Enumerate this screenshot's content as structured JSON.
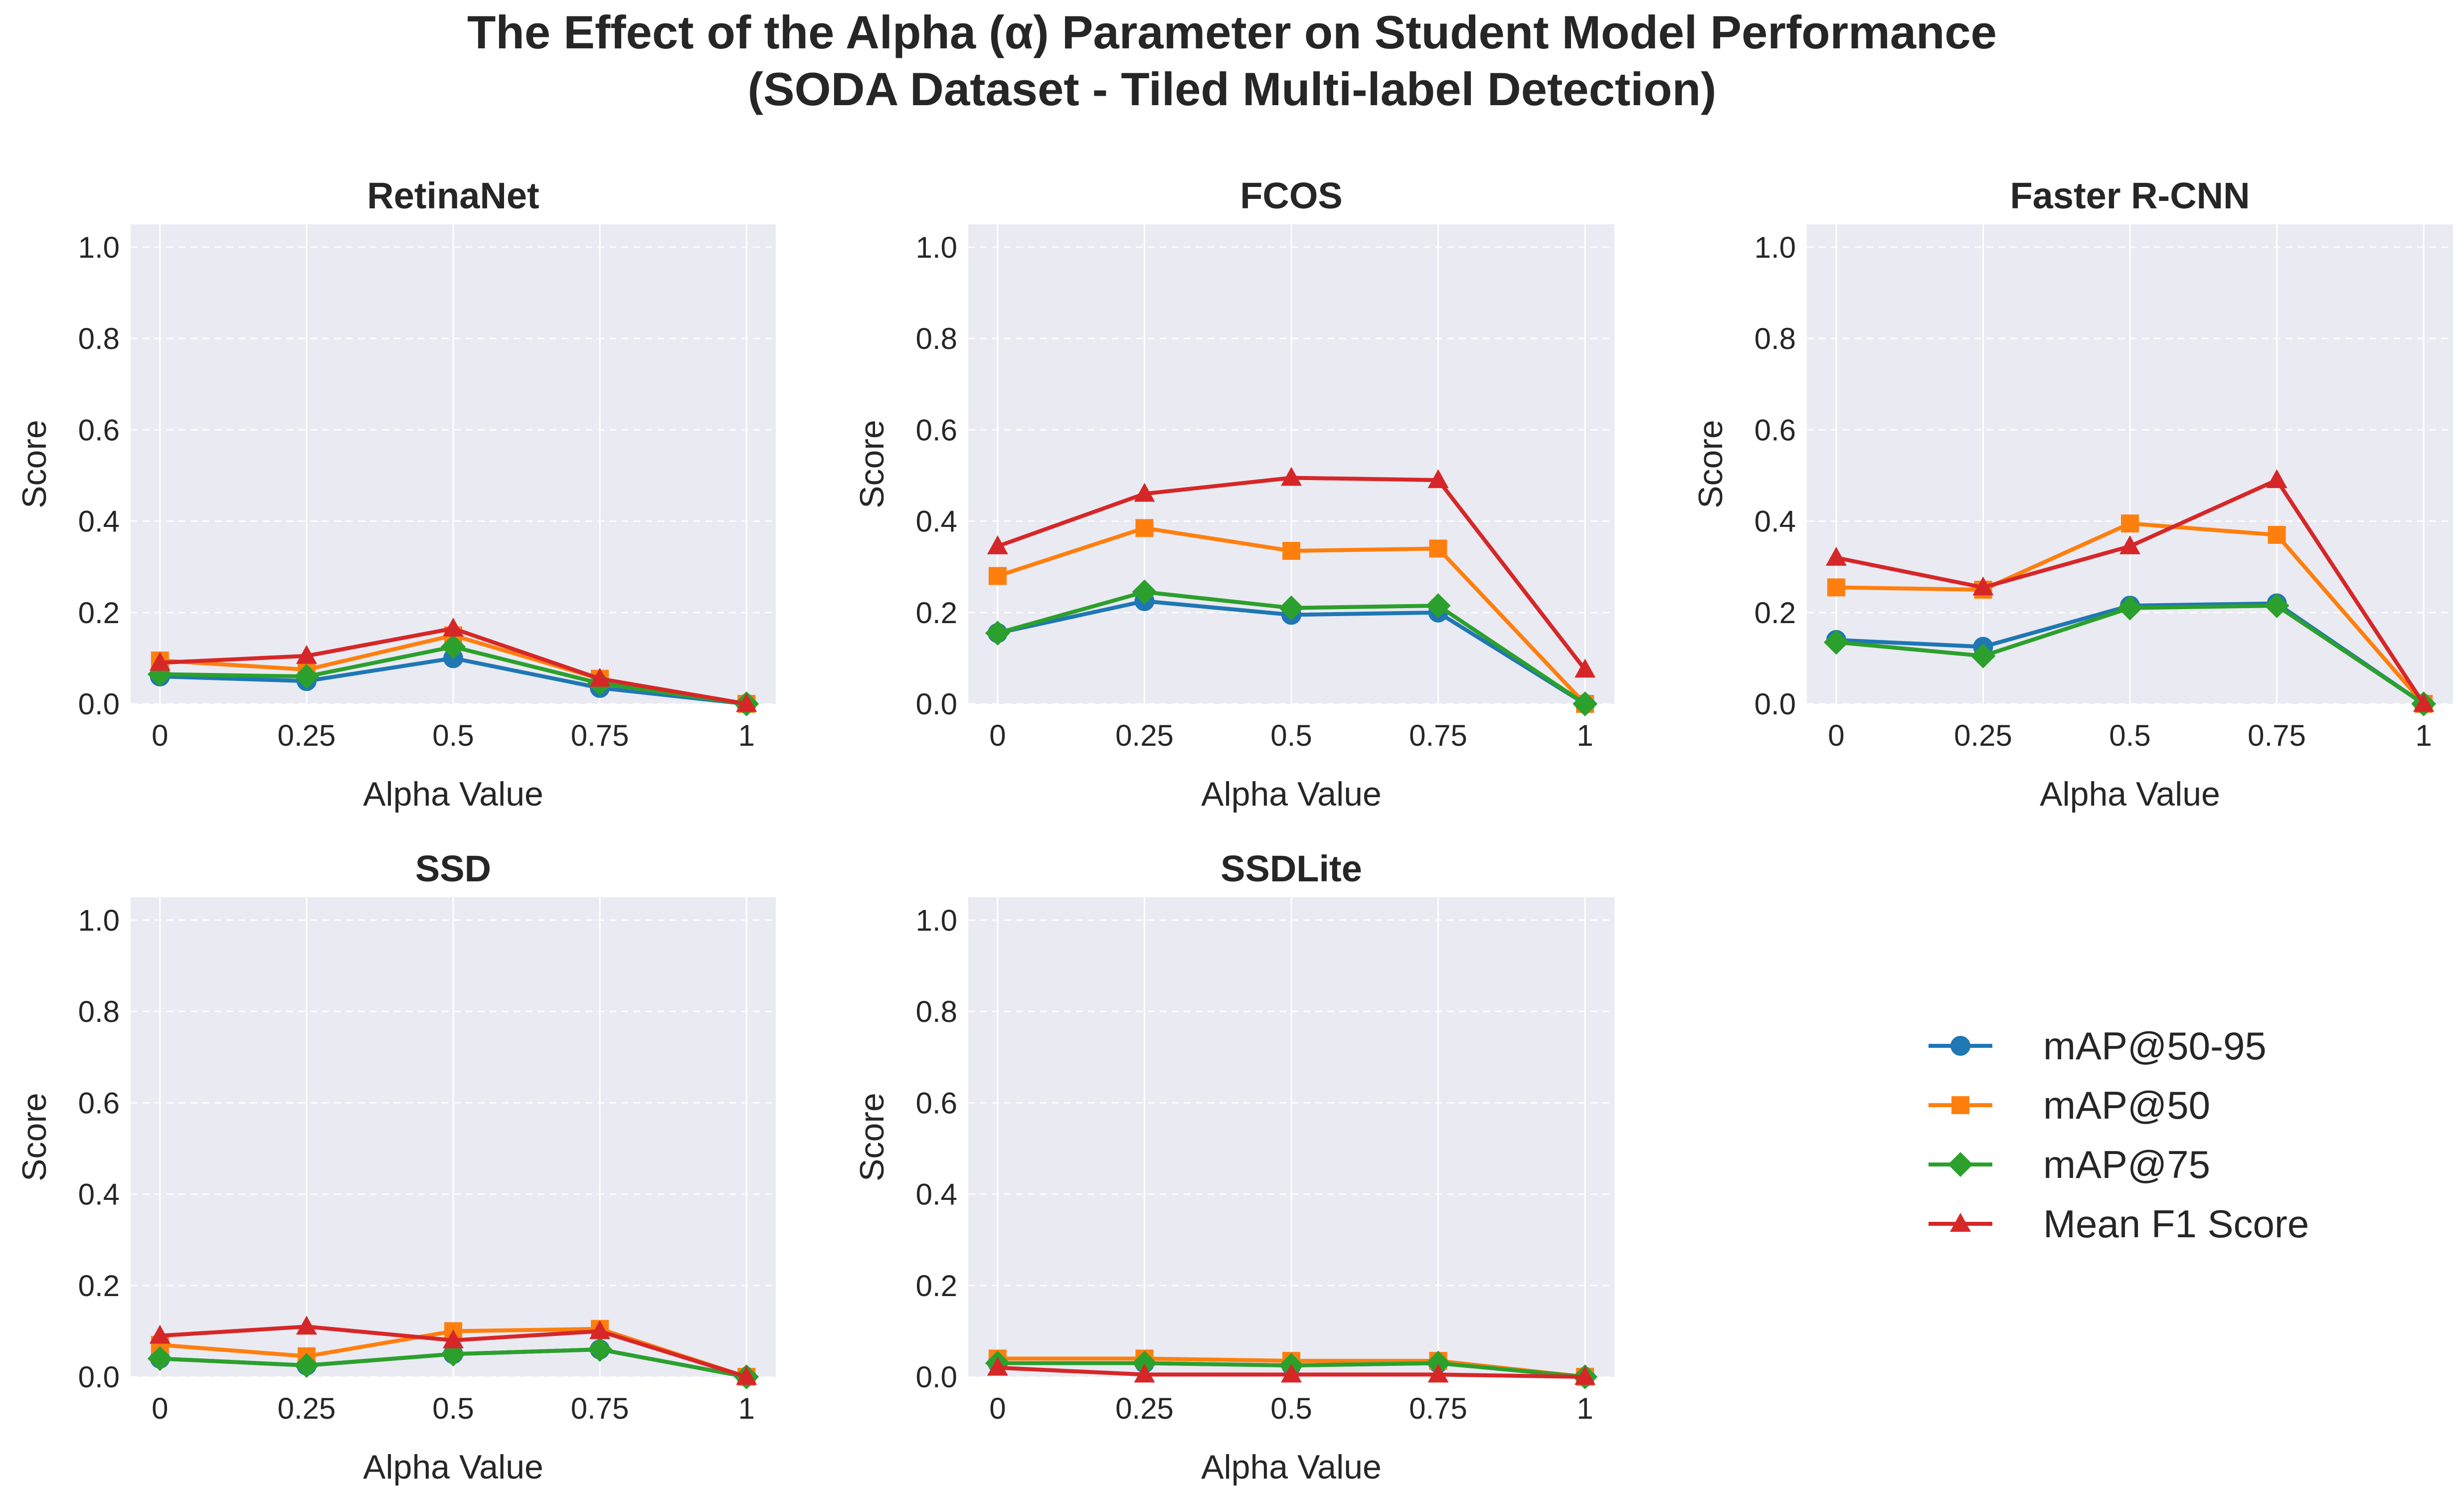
{
  "title_line1": "The Effect of the Alpha (α) Parameter on Student Model Performance",
  "title_line2": "(SODA Dataset - Tiled Multi-label Detection)",
  "chart_data": [
    {
      "type": "line",
      "title": "RetinaNet",
      "xlabel": "Alpha Value",
      "ylabel": "Score",
      "x": [
        "0",
        "0.25",
        "0.5",
        "0.75",
        "1"
      ],
      "ylim": [
        0,
        1.05
      ],
      "yticks": [
        "0.0",
        "0.2",
        "0.4",
        "0.6",
        "0.8",
        "1.0"
      ],
      "series": [
        {
          "name": "mAP@50-95",
          "values": [
            0.06,
            0.05,
            0.1,
            0.035,
            0.0
          ]
        },
        {
          "name": "mAP@50",
          "values": [
            0.095,
            0.075,
            0.15,
            0.055,
            0.0
          ]
        },
        {
          "name": "mAP@75",
          "values": [
            0.065,
            0.06,
            0.125,
            0.045,
            0.0
          ]
        },
        {
          "name": "Mean F1 Score",
          "values": [
            0.09,
            0.105,
            0.165,
            0.055,
            0.0
          ]
        }
      ]
    },
    {
      "type": "line",
      "title": "FCOS",
      "xlabel": "Alpha Value",
      "ylabel": "Score",
      "x": [
        "0",
        "0.25",
        "0.5",
        "0.75",
        "1"
      ],
      "ylim": [
        0,
        1.05
      ],
      "yticks": [
        "0.0",
        "0.2",
        "0.4",
        "0.6",
        "0.8",
        "1.0"
      ],
      "series": [
        {
          "name": "mAP@50-95",
          "values": [
            0.155,
            0.225,
            0.195,
            0.2,
            0.0
          ]
        },
        {
          "name": "mAP@50",
          "values": [
            0.28,
            0.385,
            0.335,
            0.34,
            0.0
          ]
        },
        {
          "name": "mAP@75",
          "values": [
            0.155,
            0.245,
            0.21,
            0.215,
            0.0
          ]
        },
        {
          "name": "Mean F1 Score",
          "values": [
            0.345,
            0.46,
            0.495,
            0.49,
            0.075
          ]
        }
      ]
    },
    {
      "type": "line",
      "title": "Faster R-CNN",
      "xlabel": "Alpha Value",
      "ylabel": "Score",
      "x": [
        "0",
        "0.25",
        "0.5",
        "0.75",
        "1"
      ],
      "ylim": [
        0,
        1.05
      ],
      "yticks": [
        "0.0",
        "0.2",
        "0.4",
        "0.6",
        "0.8",
        "1.0"
      ],
      "series": [
        {
          "name": "mAP@50-95",
          "values": [
            0.14,
            0.125,
            0.215,
            0.22,
            0.0
          ]
        },
        {
          "name": "mAP@50",
          "values": [
            0.255,
            0.25,
            0.395,
            0.37,
            0.0
          ]
        },
        {
          "name": "mAP@75",
          "values": [
            0.135,
            0.105,
            0.21,
            0.215,
            0.0
          ]
        },
        {
          "name": "Mean F1 Score",
          "values": [
            0.32,
            0.255,
            0.345,
            0.49,
            0.0
          ]
        }
      ]
    },
    {
      "type": "line",
      "title": "SSD",
      "xlabel": "Alpha Value",
      "ylabel": "Score",
      "x": [
        "0",
        "0.25",
        "0.5",
        "0.75",
        "1"
      ],
      "ylim": [
        0,
        1.05
      ],
      "yticks": [
        "0.0",
        "0.2",
        "0.4",
        "0.6",
        "0.8",
        "1.0"
      ],
      "series": [
        {
          "name": "mAP@50-95",
          "values": [
            0.04,
            0.025,
            0.05,
            0.06,
            0.0
          ]
        },
        {
          "name": "mAP@50",
          "values": [
            0.07,
            0.045,
            0.1,
            0.105,
            0.0
          ]
        },
        {
          "name": "mAP@75",
          "values": [
            0.04,
            0.025,
            0.05,
            0.06,
            0.0
          ]
        },
        {
          "name": "Mean F1 Score",
          "values": [
            0.09,
            0.11,
            0.08,
            0.1,
            0.0
          ]
        }
      ]
    },
    {
      "type": "line",
      "title": "SSDLite",
      "xlabel": "Alpha Value",
      "ylabel": "Score",
      "x": [
        "0",
        "0.25",
        "0.5",
        "0.75",
        "1"
      ],
      "ylim": [
        0,
        1.05
      ],
      "yticks": [
        "0.0",
        "0.2",
        "0.4",
        "0.6",
        "0.8",
        "1.0"
      ],
      "series": [
        {
          "name": "mAP@50-95",
          "values": [
            0.03,
            0.03,
            0.025,
            0.03,
            0.0
          ]
        },
        {
          "name": "mAP@50",
          "values": [
            0.04,
            0.04,
            0.035,
            0.035,
            0.0
          ]
        },
        {
          "name": "mAP@75",
          "values": [
            0.03,
            0.03,
            0.025,
            0.03,
            0.0
          ]
        },
        {
          "name": "Mean F1 Score",
          "values": [
            0.02,
            0.005,
            0.005,
            0.005,
            0.0
          ]
        }
      ]
    }
  ],
  "legend": {
    "placement": "lower-right empty slot",
    "entries": [
      {
        "label": "mAP@50-95",
        "color": "#1f77b4",
        "marker": "circle"
      },
      {
        "label": "mAP@50",
        "color": "#ff7f0e",
        "marker": "square"
      },
      {
        "label": "mAP@75",
        "color": "#2ca02c",
        "marker": "diamond"
      },
      {
        "label": "Mean F1 Score",
        "color": "#d62728",
        "marker": "triangle"
      }
    ]
  },
  "style": {
    "plot_background": "#eaeaf2",
    "grid_color": "#ffffff",
    "grid": true
  }
}
